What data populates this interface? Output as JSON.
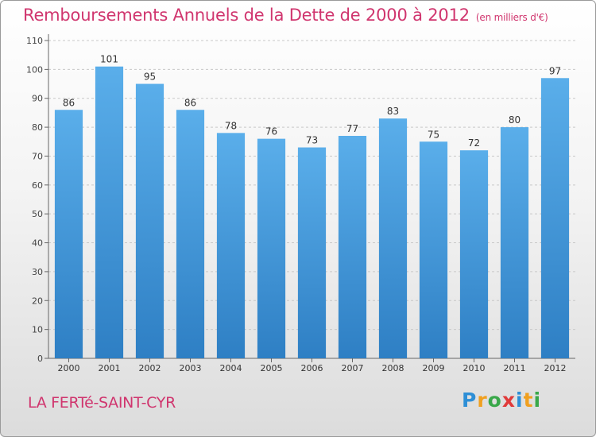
{
  "title": "Remboursements Annuels de la Dette de 2000 à 2012",
  "unit": "(en milliers d'€)",
  "commune": "LA FERTé-SAINT-CYR",
  "logo": {
    "text": "Proxiti",
    "letters": [
      {
        "ch": "P",
        "color": "#2e8fd6"
      },
      {
        "ch": "r",
        "color": "#f0a020"
      },
      {
        "ch": "o",
        "color": "#3aa84a"
      },
      {
        "ch": "x",
        "color": "#e03a3a"
      },
      {
        "ch": "i",
        "color": "#2e8fd6"
      },
      {
        "ch": "t",
        "color": "#f0a020"
      },
      {
        "ch": "i",
        "color": "#3aa84a"
      }
    ]
  },
  "colors": {
    "bar_top": "#5aaeea",
    "bar_bottom": "#2e7fc4",
    "title": "#d0356e"
  },
  "chart_data": {
    "type": "bar",
    "categories": [
      "2000",
      "2001",
      "2002",
      "2003",
      "2004",
      "2005",
      "2006",
      "2007",
      "2008",
      "2009",
      "2010",
      "2011",
      "2012"
    ],
    "values": [
      86,
      101,
      95,
      86,
      78,
      76,
      73,
      77,
      83,
      75,
      72,
      80,
      97
    ],
    "ylim": [
      0,
      110
    ],
    "yticks": [
      0,
      10,
      20,
      30,
      40,
      50,
      60,
      70,
      80,
      90,
      100,
      110
    ],
    "grid": true
  }
}
